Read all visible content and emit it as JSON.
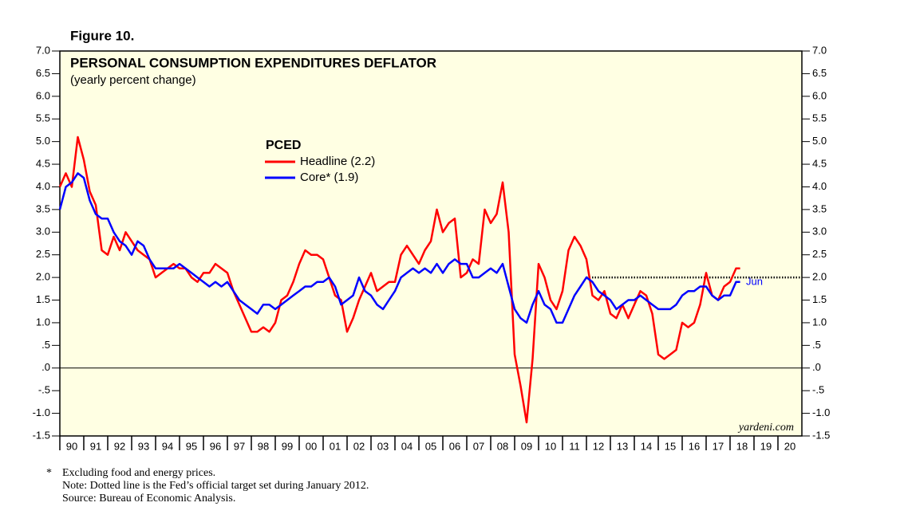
{
  "chart_data": {
    "type": "line",
    "figure_label": "Figure 10.",
    "title": "PERSONAL CONSUMPTION EXPENDITURES DEFLATOR",
    "subtitle": "(yearly percent change)",
    "legend_title": "PCED",
    "xlim": [
      1990,
      2021
    ],
    "xticks": [
      {
        "value": 1990,
        "label": "90"
      },
      {
        "value": 1991,
        "label": "91"
      },
      {
        "value": 1992,
        "label": "92"
      },
      {
        "value": 1993,
        "label": "93"
      },
      {
        "value": 1994,
        "label": "94"
      },
      {
        "value": 1995,
        "label": "95"
      },
      {
        "value": 1996,
        "label": "96"
      },
      {
        "value": 1997,
        "label": "97"
      },
      {
        "value": 1998,
        "label": "98"
      },
      {
        "value": 1999,
        "label": "99"
      },
      {
        "value": 2000,
        "label": "00"
      },
      {
        "value": 2001,
        "label": "01"
      },
      {
        "value": 2002,
        "label": "02"
      },
      {
        "value": 2003,
        "label": "03"
      },
      {
        "value": 2004,
        "label": "04"
      },
      {
        "value": 2005,
        "label": "05"
      },
      {
        "value": 2006,
        "label": "06"
      },
      {
        "value": 2007,
        "label": "07"
      },
      {
        "value": 2008,
        "label": "08"
      },
      {
        "value": 2009,
        "label": "09"
      },
      {
        "value": 2010,
        "label": "10"
      },
      {
        "value": 2011,
        "label": "11"
      },
      {
        "value": 2012,
        "label": "12"
      },
      {
        "value": 2013,
        "label": "13"
      },
      {
        "value": 2014,
        "label": "14"
      },
      {
        "value": 2015,
        "label": "15"
      },
      {
        "value": 2016,
        "label": "16"
      },
      {
        "value": 2017,
        "label": "17"
      },
      {
        "value": 2018,
        "label": "18"
      },
      {
        "value": 2019,
        "label": "19"
      },
      {
        "value": 2020,
        "label": "20"
      }
    ],
    "ylim": [
      -1.5,
      7
    ],
    "yticks": [
      {
        "value": 7,
        "label": "7.0"
      },
      {
        "value": 6.5,
        "label": "6.5"
      },
      {
        "value": 6,
        "label": "6.0"
      },
      {
        "value": 5.5,
        "label": "5.5"
      },
      {
        "value": 5,
        "label": "5.0"
      },
      {
        "value": 4.5,
        "label": "4.5"
      },
      {
        "value": 4,
        "label": "4.0"
      },
      {
        "value": 3.5,
        "label": "3.5"
      },
      {
        "value": 3,
        "label": "3.0"
      },
      {
        "value": 2.5,
        "label": "2.5"
      },
      {
        "value": 2,
        "label": "2.0"
      },
      {
        "value": 1.5,
        "label": "1.5"
      },
      {
        "value": 1,
        "label": "1.0"
      },
      {
        "value": 0.5,
        "label": ".5"
      },
      {
        "value": 0,
        "label": ".0"
      },
      {
        "value": -0.5,
        "label": "-.5"
      },
      {
        "value": -1,
        "label": "-1.0"
      },
      {
        "value": -1.5,
        "label": "-1.5"
      }
    ],
    "x": [
      1990,
      1990.25,
      1990.5,
      1990.75,
      1991,
      1991.25,
      1991.5,
      1991.75,
      1992,
      1992.25,
      1992.5,
      1992.75,
      1993,
      1993.25,
      1993.5,
      1993.75,
      1994,
      1994.25,
      1994.5,
      1994.75,
      1995,
      1995.25,
      1995.5,
      1995.75,
      1996,
      1996.25,
      1996.5,
      1996.75,
      1997,
      1997.25,
      1997.5,
      1997.75,
      1998,
      1998.25,
      1998.5,
      1998.75,
      1999,
      1999.25,
      1999.5,
      1999.75,
      2000,
      2000.25,
      2000.5,
      2000.75,
      2001,
      2001.25,
      2001.5,
      2001.75,
      2002,
      2002.25,
      2002.5,
      2002.75,
      2003,
      2003.25,
      2003.5,
      2003.75,
      2004,
      2004.25,
      2004.5,
      2004.75,
      2005,
      2005.25,
      2005.5,
      2005.75,
      2006,
      2006.25,
      2006.5,
      2006.75,
      2007,
      2007.25,
      2007.5,
      2007.75,
      2008,
      2008.25,
      2008.5,
      2008.75,
      2009,
      2009.25,
      2009.5,
      2009.75,
      2010,
      2010.25,
      2010.5,
      2010.75,
      2011,
      2011.25,
      2011.5,
      2011.75,
      2012,
      2012.25,
      2012.5,
      2012.75,
      2013,
      2013.25,
      2013.5,
      2013.75,
      2014,
      2014.25,
      2014.5,
      2014.75,
      2015,
      2015.25,
      2015.5,
      2015.75,
      2016,
      2016.25,
      2016.5,
      2016.75,
      2017,
      2017.25,
      2017.5,
      2017.75,
      2018,
      2018.25,
      2018.42
    ],
    "series": [
      {
        "name": "Headline (2.2)",
        "color": "#ff0000",
        "values": [
          4.0,
          4.3,
          4.0,
          5.1,
          4.6,
          3.9,
          3.6,
          2.6,
          2.5,
          2.9,
          2.6,
          3.0,
          2.8,
          2.6,
          2.5,
          2.4,
          2.0,
          2.1,
          2.2,
          2.3,
          2.2,
          2.2,
          2.0,
          1.9,
          2.1,
          2.1,
          2.3,
          2.2,
          2.1,
          1.7,
          1.4,
          1.1,
          0.8,
          0.8,
          0.9,
          0.8,
          1.0,
          1.5,
          1.6,
          1.9,
          2.3,
          2.6,
          2.5,
          2.5,
          2.4,
          2.0,
          1.6,
          1.5,
          0.8,
          1.1,
          1.5,
          1.8,
          2.1,
          1.7,
          1.8,
          1.9,
          1.9,
          2.5,
          2.7,
          2.5,
          2.3,
          2.6,
          2.8,
          3.5,
          3.0,
          3.2,
          3.3,
          2.0,
          2.1,
          2.4,
          2.3,
          3.5,
          3.2,
          3.4,
          4.1,
          3.0,
          0.3,
          -0.4,
          -1.2,
          0.2,
          2.3,
          2.0,
          1.5,
          1.3,
          1.7,
          2.6,
          2.9,
          2.7,
          2.4,
          1.6,
          1.5,
          1.7,
          1.2,
          1.1,
          1.4,
          1.1,
          1.4,
          1.7,
          1.6,
          1.2,
          0.3,
          0.2,
          0.3,
          0.4,
          1.0,
          0.9,
          1.0,
          1.4,
          2.1,
          1.6,
          1.5,
          1.8,
          1.9,
          2.2,
          2.2
        ]
      },
      {
        "name": "Core* (1.9)",
        "color": "#0000ff",
        "values": [
          3.5,
          4.0,
          4.1,
          4.3,
          4.2,
          3.7,
          3.4,
          3.3,
          3.3,
          3.0,
          2.8,
          2.7,
          2.5,
          2.8,
          2.7,
          2.4,
          2.2,
          2.2,
          2.2,
          2.2,
          2.3,
          2.2,
          2.1,
          2.0,
          1.9,
          1.8,
          1.9,
          1.8,
          1.9,
          1.7,
          1.5,
          1.4,
          1.3,
          1.2,
          1.4,
          1.4,
          1.3,
          1.4,
          1.5,
          1.6,
          1.7,
          1.8,
          1.8,
          1.9,
          1.9,
          2.0,
          1.8,
          1.4,
          1.5,
          1.6,
          2.0,
          1.7,
          1.6,
          1.4,
          1.3,
          1.5,
          1.7,
          2.0,
          2.1,
          2.2,
          2.1,
          2.2,
          2.1,
          2.3,
          2.1,
          2.3,
          2.4,
          2.3,
          2.3,
          2.0,
          2.0,
          2.1,
          2.2,
          2.1,
          2.3,
          1.8,
          1.3,
          1.1,
          1.0,
          1.4,
          1.7,
          1.4,
          1.3,
          1.0,
          1.0,
          1.3,
          1.6,
          1.8,
          2.0,
          1.9,
          1.7,
          1.6,
          1.5,
          1.3,
          1.4,
          1.5,
          1.5,
          1.6,
          1.5,
          1.4,
          1.3,
          1.3,
          1.3,
          1.4,
          1.6,
          1.7,
          1.7,
          1.8,
          1.8,
          1.6,
          1.5,
          1.6,
          1.6,
          1.9,
          1.9
        ]
      }
    ],
    "reference_line": {
      "y": 2,
      "x": [
        2012,
        2021
      ]
    },
    "annotation": "Jun",
    "source_mark": "yardeni.com",
    "footnote_marker": "*",
    "footnotes": [
      "Excluding food and energy prices.",
      "Note: Dotted line is the Fed’s official target set during January 2012.",
      "Source: Bureau of Economic Analysis."
    ]
  }
}
